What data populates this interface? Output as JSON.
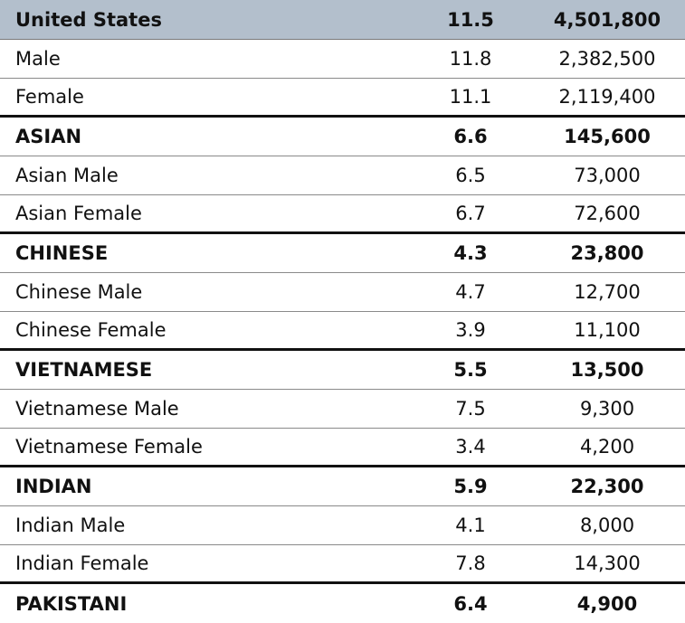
{
  "rows": [
    {
      "label": "United States",
      "rate": "11.5",
      "count": "4,501,800"
    },
    {
      "label": "Male",
      "rate": "11.8",
      "count": "2,382,500"
    },
    {
      "label": "Female",
      "rate": "11.1",
      "count": "2,119,400"
    },
    {
      "label": "ASIAN",
      "rate": "6.6",
      "count": "145,600"
    },
    {
      "label": "Asian Male",
      "rate": "6.5",
      "count": "73,000"
    },
    {
      "label": "Asian Female",
      "rate": "6.7",
      "count": "72,600"
    },
    {
      "label": "CHINESE",
      "rate": "4.3",
      "count": "23,800"
    },
    {
      "label": "Chinese Male",
      "rate": "4.7",
      "count": "12,700"
    },
    {
      "label": "Chinese Female",
      "rate": "3.9",
      "count": "11,100"
    },
    {
      "label": "VIETNAMESE",
      "rate": "5.5",
      "count": "13,500"
    },
    {
      "label": "Vietnamese Male",
      "rate": "7.5",
      "count": "9,300"
    },
    {
      "label": "Vietnamese Female",
      "rate": "3.4",
      "count": "4,200"
    },
    {
      "label": "INDIAN",
      "rate": "5.9",
      "count": "22,300"
    },
    {
      "label": "Indian Male",
      "rate": "4.1",
      "count": "8,000"
    },
    {
      "label": "Indian Female",
      "rate": "7.8",
      "count": "14,300"
    },
    {
      "label": "PAKISTANI",
      "rate": "6.4",
      "count": "4,900"
    }
  ]
}
